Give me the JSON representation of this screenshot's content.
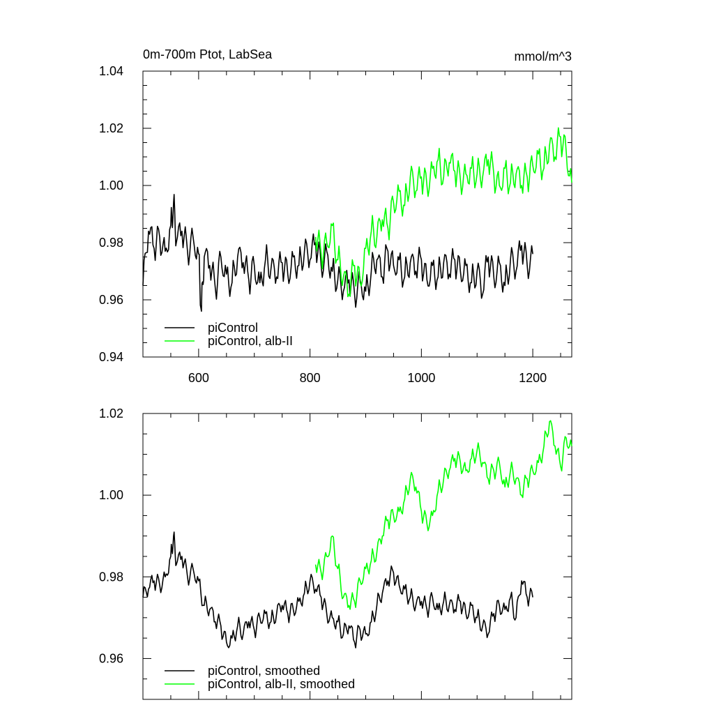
{
  "chart_data": [
    {
      "type": "line",
      "title": "0m-700m Ptot, LabSea",
      "units": "mmol/m^3",
      "xlim": [
        500,
        1270
      ],
      "ylim": [
        0.94,
        1.04
      ],
      "xticks": [
        600,
        800,
        1000,
        1200
      ],
      "xtick_labels": [
        "600",
        "800",
        "1000",
        "1200"
      ],
      "yticks": [
        0.94,
        0.96,
        0.98,
        1.0,
        1.02,
        1.04
      ],
      "ytick_labels": [
        "0.94",
        "0.96",
        "0.98",
        "1.00",
        "1.02",
        "1.04"
      ],
      "legend_position": "bottom-left",
      "grid": false,
      "series": [
        {
          "name": "piControl",
          "color": "#000000",
          "x": [
            500,
            510,
            520,
            530,
            540,
            550,
            555,
            560,
            570,
            580,
            590,
            600,
            605,
            610,
            620,
            630,
            640,
            650,
            660,
            670,
            680,
            690,
            700,
            710,
            720,
            730,
            740,
            750,
            760,
            770,
            780,
            790,
            800,
            810,
            820,
            830,
            840,
            850,
            860,
            870,
            880,
            890,
            900,
            910,
            920,
            930,
            940,
            950,
            960,
            970,
            980,
            990,
            1000,
            1010,
            1020,
            1030,
            1040,
            1050,
            1060,
            1070,
            1080,
            1090,
            1100,
            1110,
            1120,
            1130,
            1140,
            1150,
            1160,
            1170,
            1180,
            1190,
            1200
          ],
          "y": [
            0.965,
            0.984,
            0.978,
            0.982,
            0.977,
            0.986,
            0.994,
            0.98,
            0.984,
            0.977,
            0.982,
            0.976,
            0.956,
            0.975,
            0.972,
            0.964,
            0.975,
            0.969,
            0.966,
            0.975,
            0.973,
            0.967,
            0.972,
            0.966,
            0.974,
            0.971,
            0.968,
            0.973,
            0.969,
            0.975,
            0.972,
            0.977,
            0.974,
            0.98,
            0.972,
            0.977,
            0.97,
            0.967,
            0.963,
            0.967,
            0.962,
            0.967,
            0.963,
            0.97,
            0.974,
            0.968,
            0.977,
            0.972,
            0.974,
            0.968,
            0.973,
            0.97,
            0.974,
            0.967,
            0.972,
            0.968,
            0.973,
            0.969,
            0.974,
            0.97,
            0.972,
            0.966,
            0.97,
            0.962,
            0.975,
            0.968,
            0.973,
            0.965,
            0.974,
            0.97,
            0.979,
            0.972,
            0.976
          ]
        },
        {
          "name": "piControl, alb-II",
          "color": "#00ff00",
          "x": [
            810,
            820,
            830,
            840,
            850,
            860,
            870,
            880,
            890,
            900,
            910,
            920,
            930,
            940,
            950,
            960,
            970,
            980,
            990,
            1000,
            1010,
            1020,
            1030,
            1040,
            1050,
            1060,
            1070,
            1080,
            1090,
            1100,
            1110,
            1120,
            1130,
            1140,
            1150,
            1160,
            1170,
            1180,
            1190,
            1200,
            1210,
            1220,
            1230,
            1240,
            1250,
            1260,
            1270
          ],
          "y": [
            0.982,
            0.976,
            0.98,
            0.986,
            0.974,
            0.968,
            0.962,
            0.972,
            0.966,
            0.978,
            0.984,
            0.982,
            0.988,
            0.985,
            0.994,
            0.998,
            0.993,
            1.003,
            0.998,
            1.003,
            1.0,
            1.006,
            1.009,
            1.003,
            1.008,
            1.005,
            1.002,
            1.004,
            1.006,
            1.004,
            1.003,
            1.009,
            1.004,
            1.0,
            1.006,
            1.001,
            1.004,
            1.0,
            1.003,
            1.007,
            1.011,
            1.006,
            1.014,
            1.01,
            1.017,
            1.012,
            1.001
          ]
        }
      ]
    },
    {
      "type": "line",
      "xlim": [
        500,
        1270
      ],
      "ylim": [
        0.95,
        1.02
      ],
      "xticks": [
        600,
        800,
        1000,
        1200
      ],
      "yticks": [
        0.96,
        0.98,
        1.0,
        1.02
      ],
      "ytick_labels": [
        "0.96",
        "0.98",
        "1.00",
        "1.02"
      ],
      "legend_position": "bottom-left",
      "grid": false,
      "series": [
        {
          "name": "piControl, smoothed",
          "color": "#000000",
          "x": [
            500,
            510,
            520,
            530,
            540,
            550,
            555,
            560,
            570,
            580,
            590,
            600,
            610,
            620,
            630,
            640,
            650,
            660,
            670,
            680,
            690,
            700,
            710,
            720,
            730,
            740,
            750,
            760,
            770,
            780,
            790,
            800,
            810,
            820,
            830,
            840,
            850,
            860,
            870,
            880,
            890,
            900,
            910,
            920,
            930,
            940,
            950,
            960,
            970,
            980,
            990,
            1000,
            1010,
            1020,
            1030,
            1040,
            1050,
            1060,
            1070,
            1080,
            1090,
            1100,
            1110,
            1120,
            1130,
            1140,
            1150,
            1160,
            1170,
            1180,
            1190,
            1200
          ],
          "y": [
            0.975,
            0.977,
            0.979,
            0.978,
            0.98,
            0.985,
            0.99,
            0.983,
            0.985,
            0.98,
            0.982,
            0.979,
            0.973,
            0.972,
            0.969,
            0.968,
            0.964,
            0.965,
            0.968,
            0.966,
            0.969,
            0.967,
            0.97,
            0.971,
            0.969,
            0.971,
            0.973,
            0.971,
            0.972,
            0.974,
            0.976,
            0.979,
            0.977,
            0.975,
            0.971,
            0.97,
            0.969,
            0.966,
            0.968,
            0.964,
            0.967,
            0.966,
            0.969,
            0.973,
            0.976,
            0.979,
            0.981,
            0.978,
            0.977,
            0.975,
            0.973,
            0.974,
            0.972,
            0.975,
            0.972,
            0.974,
            0.973,
            0.972,
            0.974,
            0.971,
            0.973,
            0.97,
            0.968,
            0.966,
            0.971,
            0.973,
            0.972,
            0.975,
            0.97,
            0.979,
            0.975,
            0.975
          ]
        },
        {
          "name": "piControl, alb-II, smoothed",
          "color": "#00ff00",
          "x": [
            810,
            820,
            830,
            840,
            850,
            860,
            870,
            880,
            890,
            900,
            910,
            920,
            930,
            940,
            950,
            960,
            970,
            980,
            990,
            1000,
            1010,
            1020,
            1030,
            1040,
            1050,
            1060,
            1070,
            1080,
            1090,
            1100,
            1110,
            1120,
            1130,
            1140,
            1150,
            1160,
            1170,
            1180,
            1190,
            1200,
            1210,
            1220,
            1230,
            1240,
            1250,
            1260,
            1270
          ],
          "y": [
            0.983,
            0.981,
            0.985,
            0.99,
            0.982,
            0.975,
            0.973,
            0.974,
            0.979,
            0.982,
            0.984,
            0.986,
            0.99,
            0.994,
            0.995,
            0.996,
            0.999,
            1.004,
            1.002,
            0.996,
            0.993,
            0.995,
            1.001,
            1.004,
            1.006,
            1.009,
            1.008,
            1.006,
            1.009,
            1.011,
            1.008,
            1.004,
            1.006,
            1.008,
            1.002,
            1.006,
            1.004,
            1.0,
            1.004,
            1.006,
            1.008,
            1.012,
            1.018,
            1.012,
            1.007,
            1.014,
            1.012
          ]
        }
      ]
    }
  ]
}
